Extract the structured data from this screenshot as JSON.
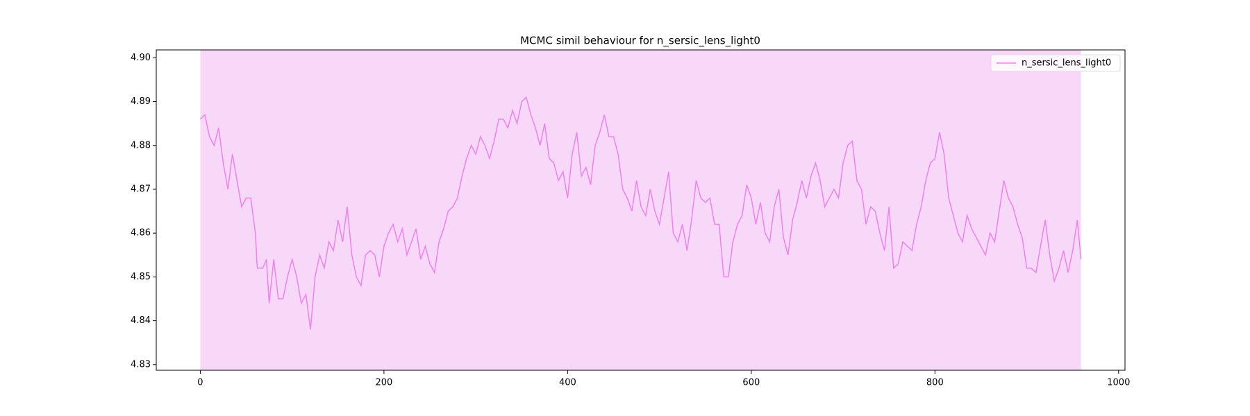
{
  "chart_data": {
    "type": "line",
    "title": "MCMC simil behaviour for n_sersic_lens_light0",
    "x": [
      0,
      5,
      10,
      15,
      20,
      25,
      30,
      35,
      40,
      45,
      50,
      55,
      60,
      62,
      68,
      72,
      75,
      80,
      85,
      90,
      95,
      100,
      105,
      110,
      115,
      120,
      125,
      130,
      135,
      140,
      145,
      150,
      155,
      160,
      165,
      170,
      175,
      180,
      185,
      190,
      195,
      200,
      205,
      210,
      215,
      220,
      225,
      230,
      235,
      240,
      245,
      250,
      255,
      260,
      265,
      270,
      275,
      280,
      285,
      290,
      295,
      300,
      305,
      310,
      315,
      320,
      325,
      330,
      335,
      340,
      345,
      350,
      355,
      360,
      365,
      370,
      375,
      380,
      385,
      390,
      395,
      400,
      405,
      410,
      415,
      420,
      425,
      430,
      435,
      440,
      445,
      450,
      455,
      460,
      465,
      470,
      475,
      480,
      485,
      490,
      495,
      500,
      505,
      510,
      515,
      520,
      525,
      530,
      535,
      540,
      545,
      550,
      555,
      560,
      565,
      570,
      575,
      580,
      585,
      590,
      595,
      600,
      605,
      610,
      615,
      620,
      625,
      630,
      635,
      640,
      645,
      650,
      655,
      660,
      665,
      670,
      675,
      680,
      685,
      690,
      695,
      700,
      705,
      710,
      715,
      720,
      725,
      730,
      735,
      740,
      745,
      750,
      755,
      760,
      765,
      770,
      775,
      780,
      785,
      790,
      795,
      800,
      805,
      810,
      815,
      820,
      825,
      830,
      835,
      840,
      845,
      850,
      855,
      860,
      865,
      870,
      875,
      880,
      885,
      890,
      895,
      900,
      905,
      910,
      915,
      920,
      925,
      930,
      935,
      940,
      945,
      950,
      955,
      959
    ],
    "series": [
      {
        "name": "n_sersic_lens_light0",
        "color": "#ee82ee",
        "values": [
          4.886,
          4.887,
          4.882,
          4.88,
          4.884,
          4.876,
          4.87,
          4.878,
          4.872,
          4.866,
          4.868,
          4.868,
          4.86,
          4.852,
          4.852,
          4.854,
          4.844,
          4.854,
          4.845,
          4.845,
          4.85,
          4.854,
          4.85,
          4.844,
          4.846,
          4.838,
          4.85,
          4.855,
          4.852,
          4.858,
          4.856,
          4.863,
          4.858,
          4.866,
          4.855,
          4.85,
          4.848,
          4.855,
          4.856,
          4.855,
          4.85,
          4.857,
          4.86,
          4.862,
          4.858,
          4.861,
          4.855,
          4.858,
          4.861,
          4.854,
          4.857,
          4.853,
          4.851,
          4.858,
          4.861,
          4.865,
          4.866,
          4.868,
          4.873,
          4.877,
          4.88,
          4.878,
          4.882,
          4.88,
          4.877,
          4.881,
          4.886,
          4.886,
          4.884,
          4.888,
          4.885,
          4.89,
          4.891,
          4.887,
          4.884,
          4.88,
          4.885,
          4.877,
          4.876,
          4.872,
          4.874,
          4.868,
          4.878,
          4.883,
          4.873,
          4.875,
          4.871,
          4.88,
          4.883,
          4.887,
          4.882,
          4.882,
          4.878,
          4.87,
          4.868,
          4.865,
          4.872,
          4.866,
          4.864,
          4.87,
          4.865,
          4.862,
          4.868,
          4.874,
          4.86,
          4.858,
          4.862,
          4.856,
          4.863,
          4.872,
          4.868,
          4.867,
          4.868,
          4.862,
          4.862,
          4.85,
          4.85,
          4.858,
          4.862,
          4.864,
          4.871,
          4.868,
          4.862,
          4.867,
          4.86,
          4.858,
          4.866,
          4.87,
          4.859,
          4.855,
          4.863,
          4.867,
          4.872,
          4.868,
          4.873,
          4.876,
          4.872,
          4.866,
          4.868,
          4.87,
          4.868,
          4.876,
          4.88,
          4.881,
          4.872,
          4.87,
          4.862,
          4.866,
          4.865,
          4.86,
          4.856,
          4.866,
          4.852,
          4.853,
          4.858,
          4.857,
          4.856,
          4.862,
          4.866,
          4.872,
          4.876,
          4.877,
          4.883,
          4.878,
          4.868,
          4.864,
          4.86,
          4.858,
          4.864,
          4.861,
          4.859,
          4.857,
          4.855,
          4.86,
          4.858,
          4.865,
          4.872,
          4.868,
          4.866,
          4.862,
          4.859,
          4.852,
          4.852,
          4.851,
          4.857,
          4.863,
          4.855,
          4.849,
          4.852,
          4.856,
          4.851,
          4.856,
          4.863,
          4.854
        ]
      }
    ],
    "span": [
      0,
      959
    ],
    "span_color": "#f8d8f8",
    "xlim": [
      -47.95,
      1006.95
    ],
    "xticks": [
      0,
      200,
      400,
      600,
      800,
      1000
    ],
    "ylim": [
      4.8287,
      4.9018
    ],
    "yticks": [
      4.83,
      4.84,
      4.85,
      4.86,
      4.87,
      4.88,
      4.89,
      {
        "value": 4.9,
        "label": "4.90"
      }
    ],
    "legend": "upper right"
  }
}
